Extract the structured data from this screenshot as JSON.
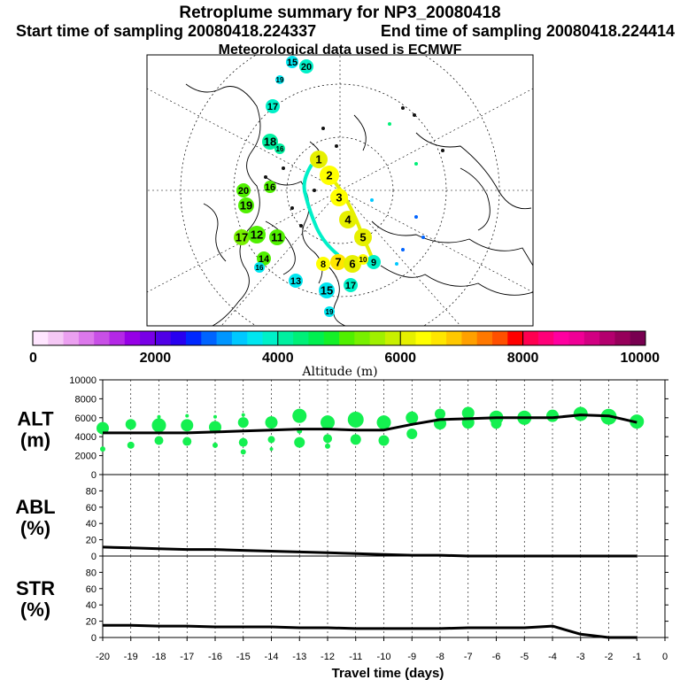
{
  "title": {
    "main": "Retroplume summary for NP3_20080418",
    "start": "Start time of sampling 20080418.224337",
    "end": "End time of sampling 20080418.224414",
    "met": "Meteorological data used is ECMWF"
  },
  "colorbar": {
    "label": "Altitude (m)",
    "ticks": [
      "0",
      "2000",
      "4000",
      "6000",
      "8000",
      "10000"
    ],
    "min": 0,
    "max": 10000,
    "colors": [
      "#ffe6ff",
      "#f5c8f5",
      "#eba0f0",
      "#dc78eb",
      "#c850e6",
      "#b428e6",
      "#9600e6",
      "#7800e6",
      "#5000e6",
      "#2800f0",
      "#0028ff",
      "#0064ff",
      "#0096ff",
      "#00c8ff",
      "#00e6f0",
      "#00f0c8",
      "#00f0a0",
      "#00f078",
      "#00f050",
      "#14f028",
      "#50f000",
      "#78f000",
      "#a0f000",
      "#c8f000",
      "#e6f000",
      "#ffff00",
      "#ffe600",
      "#ffc800",
      "#ffa000",
      "#ff7800",
      "#ff5000",
      "#ff0000",
      "#ff0050",
      "#ff0078",
      "#ff00a0",
      "#f00096",
      "#d20082",
      "#b4006e",
      "#96005a",
      "#780050"
    ]
  },
  "map": {
    "labels": [
      {
        "text": "15",
        "v": 3500
      },
      {
        "text": "20",
        "v": 3800
      },
      {
        "text": "19",
        "v": 3600
      },
      {
        "text": "17",
        "v": 3800
      },
      {
        "text": "18",
        "v": 4200
      },
      {
        "text": "16",
        "v": 4200
      },
      {
        "text": "20",
        "v": 5000
      },
      {
        "text": "19",
        "v": 5200
      },
      {
        "text": "17",
        "v": 5400
      },
      {
        "text": "12",
        "v": 5000
      },
      {
        "text": "11",
        "v": 5100
      },
      {
        "text": "14",
        "v": 5200
      },
      {
        "text": "16",
        "v": 5100
      },
      {
        "text": "13",
        "v": 3600
      },
      {
        "text": "15",
        "v": 3600
      },
      {
        "text": "19",
        "v": 3500
      },
      {
        "text": "16",
        "v": 3500
      },
      {
        "text": "17",
        "v": 3800
      },
      {
        "text": "9",
        "v": 3800
      },
      {
        "text": "8",
        "v": 6400
      },
      {
        "text": "7",
        "v": 6500
      },
      {
        "text": "6",
        "v": 6200
      },
      {
        "text": "5",
        "v": 6100
      },
      {
        "text": "4",
        "v": 6200
      },
      {
        "text": "3",
        "v": 6300
      },
      {
        "text": "2",
        "v": 6300
      },
      {
        "text": "1",
        "v": 6000
      },
      {
        "text": "10",
        "v": 6400
      }
    ]
  },
  "chart_data": [
    {
      "type": "line",
      "panel": "ALT",
      "ylabel_line1": "ALT",
      "ylabel_line2": "(m)",
      "xlabel": "Travel time (days)",
      "x": [
        -20,
        -19,
        -18,
        -17,
        -16,
        -15,
        -14,
        -13,
        -12,
        -11,
        -10,
        -9,
        -8,
        -7,
        -6,
        -5,
        -4,
        -3,
        -2,
        -1
      ],
      "ylim": [
        0,
        10000
      ],
      "yticks": [
        0,
        2000,
        4000,
        6000,
        8000,
        10000
      ],
      "xticks": [
        "-20",
        "-19",
        "-18",
        "-17",
        "-16",
        "-15",
        "-14",
        "-13",
        "-12",
        "-11",
        "-10",
        "-9",
        "-8",
        "-7",
        "-6",
        "-5",
        "-4",
        "-3",
        "-2",
        "-1",
        "0"
      ],
      "xlim": [
        -20,
        0
      ],
      "series": [
        {
          "name": "mean altitude",
          "values": [
            4400,
            4400,
            4400,
            4400,
            4500,
            4600,
            4700,
            4800,
            4800,
            4700,
            4700,
            5300,
            5800,
            5900,
            6000,
            6000,
            6000,
            6300,
            6200,
            5500
          ]
        }
      ],
      "clusters": [
        {
          "x": -20,
          "y": 4900,
          "r": 7
        },
        {
          "x": -20,
          "y": 2700,
          "r": 3
        },
        {
          "x": -19,
          "y": 5300,
          "r": 6
        },
        {
          "x": -19,
          "y": 3100,
          "r": 4
        },
        {
          "x": -18,
          "y": 5200,
          "r": 8
        },
        {
          "x": -18,
          "y": 3600,
          "r": 5
        },
        {
          "x": -18,
          "y": 6100,
          "r": 2
        },
        {
          "x": -17,
          "y": 5200,
          "r": 7
        },
        {
          "x": -17,
          "y": 3500,
          "r": 5
        },
        {
          "x": -17,
          "y": 6200,
          "r": 2
        },
        {
          "x": -16,
          "y": 5000,
          "r": 7
        },
        {
          "x": -16,
          "y": 3100,
          "r": 3
        },
        {
          "x": -16,
          "y": 6100,
          "r": 2
        },
        {
          "x": -15,
          "y": 5500,
          "r": 6
        },
        {
          "x": -15,
          "y": 3400,
          "r": 5
        },
        {
          "x": -15,
          "y": 2400,
          "r": 3
        },
        {
          "x": -15,
          "y": 6300,
          "r": 2
        },
        {
          "x": -14,
          "y": 5500,
          "r": 7
        },
        {
          "x": -14,
          "y": 3700,
          "r": 4
        },
        {
          "x": -14,
          "y": 2700,
          "r": 2
        },
        {
          "x": -13,
          "y": 6200,
          "r": 8
        },
        {
          "x": -13,
          "y": 3400,
          "r": 6
        },
        {
          "x": -13,
          "y": 4600,
          "r": 3
        },
        {
          "x": -12,
          "y": 5500,
          "r": 8
        },
        {
          "x": -12,
          "y": 3800,
          "r": 5
        },
        {
          "x": -12,
          "y": 3000,
          "r": 3
        },
        {
          "x": -11,
          "y": 5800,
          "r": 9
        },
        {
          "x": -11,
          "y": 3700,
          "r": 6
        },
        {
          "x": -10,
          "y": 5500,
          "r": 8
        },
        {
          "x": -10,
          "y": 3600,
          "r": 6
        },
        {
          "x": -9,
          "y": 6000,
          "r": 7
        },
        {
          "x": -9,
          "y": 4300,
          "r": 6
        },
        {
          "x": -8,
          "y": 6400,
          "r": 6
        },
        {
          "x": -8,
          "y": 5400,
          "r": 7
        },
        {
          "x": -7,
          "y": 6500,
          "r": 7
        },
        {
          "x": -7,
          "y": 5500,
          "r": 7
        },
        {
          "x": -6,
          "y": 6000,
          "r": 8
        },
        {
          "x": -6,
          "y": 5400,
          "r": 6
        },
        {
          "x": -5,
          "y": 6000,
          "r": 8
        },
        {
          "x": -4,
          "y": 6200,
          "r": 7
        },
        {
          "x": -3,
          "y": 6400,
          "r": 8
        },
        {
          "x": -2,
          "y": 6100,
          "r": 9
        },
        {
          "x": -1,
          "y": 5600,
          "r": 8
        }
      ]
    },
    {
      "type": "line",
      "panel": "ABL",
      "ylabel_line1": "ABL",
      "ylabel_line2": "(%)",
      "x": [
        -20,
        -19,
        -18,
        -17,
        -16,
        -15,
        -14,
        -13,
        -12,
        -11,
        -10,
        -9,
        -8,
        -7,
        -6,
        -5,
        -4,
        -3,
        -2,
        -1
      ],
      "ylim": [
        0,
        100
      ],
      "yticks": [
        0,
        20,
        40,
        60,
        80
      ],
      "series": [
        {
          "name": "ABL fraction",
          "values": [
            11,
            10,
            9,
            8,
            8,
            7,
            6,
            5,
            4,
            3,
            2,
            1,
            1,
            0,
            0,
            0,
            0,
            0,
            0,
            0
          ]
        }
      ]
    },
    {
      "type": "line",
      "panel": "STR",
      "ylabel_line1": "STR",
      "ylabel_line2": "(%)",
      "x": [
        -20,
        -19,
        -18,
        -17,
        -16,
        -15,
        -14,
        -13,
        -12,
        -11,
        -10,
        -9,
        -8,
        -7,
        -6,
        -5,
        -4,
        -3,
        -2,
        -1
      ],
      "ylim": [
        0,
        100
      ],
      "yticks": [
        0,
        20,
        40,
        60,
        80
      ],
      "series": [
        {
          "name": "STR fraction",
          "values": [
            15,
            15,
            14,
            14,
            13,
            13,
            13,
            12,
            12,
            11,
            11,
            11,
            11,
            12,
            12,
            12,
            14,
            4,
            0,
            0
          ]
        }
      ]
    }
  ]
}
